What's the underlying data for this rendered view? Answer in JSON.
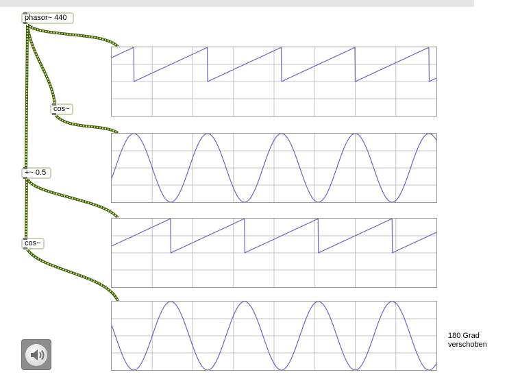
{
  "objects": {
    "phasor": "phasor~ 440",
    "cos_top": "cos~",
    "add": "+~ 0.5",
    "cos_bottom": "cos~"
  },
  "comment": "180 Grad\nverschoben",
  "icons": {
    "speaker": "speaker-volume-icon"
  },
  "colors": {
    "wave": "#6a63c4",
    "grid": "#c4c4c4",
    "wire_dark": "#3f5a18",
    "wire_light": "#d6ec7a",
    "object_border": "#c9d4b4"
  },
  "scopes": [
    {
      "name": "phasor-scope",
      "signal": "sawtooth",
      "cycles_visible": 4.4,
      "phase_offset": 0.0
    },
    {
      "name": "cos-scope",
      "signal": "cosine",
      "cycles_visible": 4.4,
      "phase_offset": 0.0
    },
    {
      "name": "shifted-phasor-scope",
      "signal": "sawtooth",
      "cycles_visible": 4.4,
      "phase_offset": 0.5
    },
    {
      "name": "shifted-cos-scope",
      "signal": "cosine",
      "cycles_visible": 4.4,
      "phase_offset": 0.5
    }
  ]
}
